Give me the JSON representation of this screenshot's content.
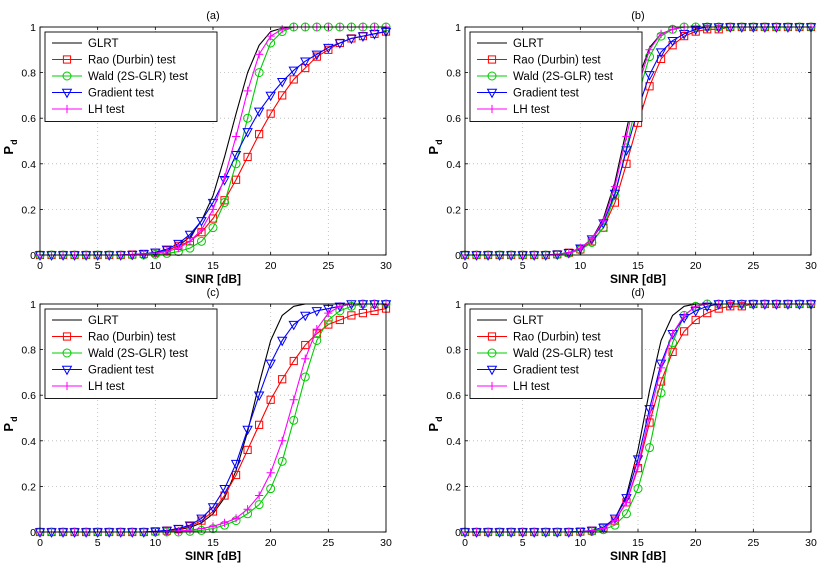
{
  "chart_data": [
    {
      "type": "line",
      "title": "(a)",
      "xlabel": "SINR [dB]",
      "ylabel": "P",
      "ylabel_subscript": "d",
      "xlim": [
        0,
        30
      ],
      "ylim": [
        0,
        1
      ],
      "x_ticks": [
        0,
        5,
        10,
        15,
        20,
        25,
        30
      ],
      "y_ticks": [
        0,
        0.2,
        0.4,
        0.6,
        0.8,
        1
      ],
      "y_tick_labels": [
        "0",
        "0.2",
        "0.4",
        "0.6",
        "0.8",
        "1"
      ],
      "grid": true,
      "legend_position": "top-left",
      "x": [
        0,
        1,
        2,
        3,
        4,
        5,
        6,
        7,
        8,
        9,
        10,
        11,
        12,
        13,
        14,
        15,
        16,
        17,
        18,
        19,
        20,
        21,
        22,
        23,
        24,
        25,
        26,
        27,
        28,
        29,
        30
      ],
      "series": [
        {
          "name": "GLRT",
          "values": [
            0,
            0,
            0,
            0,
            0,
            0,
            0,
            0,
            0.002,
            0.005,
            0.01,
            0.02,
            0.04,
            0.08,
            0.15,
            0.26,
            0.43,
            0.62,
            0.8,
            0.92,
            0.98,
            0.995,
            1,
            1,
            1,
            1,
            1,
            1,
            1,
            1,
            1
          ]
        },
        {
          "name": "Rao (Durbin) test",
          "values": [
            0,
            0,
            0,
            0,
            0,
            0,
            0,
            0,
            0.002,
            0.005,
            0.01,
            0.02,
            0.04,
            0.06,
            0.1,
            0.16,
            0.24,
            0.33,
            0.43,
            0.53,
            0.62,
            0.7,
            0.77,
            0.82,
            0.87,
            0.9,
            0.93,
            0.95,
            0.96,
            0.97,
            0.98
          ]
        },
        {
          "name": "Wald (2S-GLR) test",
          "values": [
            0,
            0,
            0,
            0,
            0,
            0,
            0,
            0,
            0,
            0,
            0.003,
            0.007,
            0.015,
            0.03,
            0.06,
            0.12,
            0.23,
            0.4,
            0.6,
            0.8,
            0.93,
            0.98,
            1,
            1,
            1,
            1,
            1,
            1,
            1,
            1,
            1
          ]
        },
        {
          "name": "Gradient test",
          "values": [
            0,
            0,
            0,
            0,
            0,
            0,
            0,
            0,
            0.002,
            0.005,
            0.012,
            0.025,
            0.05,
            0.09,
            0.15,
            0.23,
            0.33,
            0.44,
            0.54,
            0.63,
            0.7,
            0.76,
            0.81,
            0.85,
            0.88,
            0.91,
            0.93,
            0.95,
            0.96,
            0.97,
            0.98
          ]
        },
        {
          "name": "LH test",
          "values": [
            0,
            0,
            0,
            0,
            0,
            0,
            0,
            0,
            0.002,
            0.004,
            0.008,
            0.015,
            0.03,
            0.06,
            0.11,
            0.2,
            0.34,
            0.52,
            0.72,
            0.88,
            0.96,
            0.99,
            1,
            1,
            1,
            1,
            1,
            1,
            1,
            1,
            1
          ]
        }
      ]
    },
    {
      "type": "line",
      "title": "(b)",
      "xlabel": "SINR [dB]",
      "ylabel": "P",
      "ylabel_subscript": "d",
      "xlim": [
        0,
        30
      ],
      "ylim": [
        0,
        1
      ],
      "x_ticks": [
        0,
        5,
        10,
        15,
        20,
        25,
        30
      ],
      "y_ticks": [
        0,
        0.2,
        0.4,
        0.6,
        0.8,
        1
      ],
      "y_tick_labels": [
        "0",
        "0.2",
        "0.4",
        "0.6",
        "0.8",
        "1"
      ],
      "grid": true,
      "legend_position": "top-left",
      "x": [
        0,
        1,
        2,
        3,
        4,
        5,
        6,
        7,
        8,
        9,
        10,
        11,
        12,
        13,
        14,
        15,
        16,
        17,
        18,
        19,
        20,
        21,
        22,
        23,
        24,
        25,
        26,
        27,
        28,
        29,
        30
      ],
      "series": [
        {
          "name": "GLRT",
          "values": [
            0,
            0,
            0,
            0,
            0,
            0,
            0,
            0,
            0.003,
            0.01,
            0.03,
            0.07,
            0.16,
            0.32,
            0.55,
            0.77,
            0.91,
            0.97,
            0.99,
            1,
            1,
            1,
            1,
            1,
            1,
            1,
            1,
            1,
            1,
            1,
            1
          ]
        },
        {
          "name": "Rao (Durbin) test",
          "values": [
            0,
            0,
            0,
            0,
            0,
            0,
            0,
            0,
            0.003,
            0.01,
            0.025,
            0.06,
            0.12,
            0.23,
            0.4,
            0.58,
            0.74,
            0.86,
            0.92,
            0.96,
            0.98,
            0.99,
            0.99,
            1,
            1,
            1,
            1,
            1,
            1,
            1,
            1
          ]
        },
        {
          "name": "Wald (2S-GLR) test",
          "values": [
            0,
            0,
            0,
            0,
            0,
            0,
            0,
            0,
            0.002,
            0.008,
            0.022,
            0.055,
            0.12,
            0.26,
            0.47,
            0.7,
            0.87,
            0.96,
            0.99,
            1,
            1,
            1,
            1,
            1,
            1,
            1,
            1,
            1,
            1,
            1,
            1
          ]
        },
        {
          "name": "Gradient test",
          "values": [
            0,
            0,
            0,
            0,
            0,
            0,
            0,
            0,
            0.003,
            0.01,
            0.03,
            0.07,
            0.14,
            0.27,
            0.46,
            0.64,
            0.79,
            0.89,
            0.94,
            0.97,
            0.99,
            1,
            1,
            1,
            1,
            1,
            1,
            1,
            1,
            1,
            1
          ]
        },
        {
          "name": "LH test",
          "values": [
            0,
            0,
            0,
            0,
            0,
            0,
            0,
            0,
            0.003,
            0.01,
            0.03,
            0.07,
            0.15,
            0.3,
            0.52,
            0.74,
            0.9,
            0.97,
            0.99,
            1,
            1,
            1,
            1,
            1,
            1,
            1,
            1,
            1,
            1,
            1,
            1
          ]
        }
      ]
    },
    {
      "type": "line",
      "title": "(c)",
      "xlabel": "SINR [dB]",
      "ylabel": "P",
      "ylabel_subscript": "d",
      "xlim": [
        0,
        30
      ],
      "ylim": [
        0,
        1
      ],
      "x_ticks": [
        0,
        5,
        10,
        15,
        20,
        25,
        30
      ],
      "y_ticks": [
        0,
        0.2,
        0.4,
        0.6,
        0.8,
        1
      ],
      "y_tick_labels": [
        "0",
        "0.2",
        "0.4",
        "0.6",
        "0.8",
        "1"
      ],
      "grid": true,
      "legend_position": "top-left",
      "x": [
        0,
        1,
        2,
        3,
        4,
        5,
        6,
        7,
        8,
        9,
        10,
        11,
        12,
        13,
        14,
        15,
        16,
        17,
        18,
        19,
        20,
        21,
        22,
        23,
        24,
        25,
        26,
        27,
        28,
        29,
        30
      ],
      "series": [
        {
          "name": "GLRT",
          "values": [
            0,
            0,
            0,
            0,
            0,
            0,
            0,
            0,
            0,
            0,
            0.002,
            0.005,
            0.01,
            0.02,
            0.04,
            0.08,
            0.15,
            0.27,
            0.44,
            0.65,
            0.84,
            0.95,
            0.99,
            1,
            1,
            1,
            1,
            1,
            1,
            1,
            1
          ]
        },
        {
          "name": "Rao (Durbin) test",
          "values": [
            0,
            0,
            0,
            0,
            0,
            0,
            0,
            0,
            0,
            0,
            0.003,
            0.006,
            0.012,
            0.025,
            0.05,
            0.09,
            0.16,
            0.25,
            0.36,
            0.47,
            0.58,
            0.67,
            0.75,
            0.82,
            0.87,
            0.91,
            0.93,
            0.95,
            0.96,
            0.97,
            0.98
          ]
        },
        {
          "name": "Wald (2S-GLR) test",
          "values": [
            0,
            0,
            0,
            0,
            0,
            0,
            0,
            0,
            0,
            0,
            0,
            0,
            0,
            0.003,
            0.007,
            0.015,
            0.03,
            0.05,
            0.08,
            0.12,
            0.19,
            0.31,
            0.49,
            0.68,
            0.84,
            0.93,
            0.97,
            0.99,
            1,
            1,
            1
          ]
        },
        {
          "name": "Gradient test",
          "values": [
            0,
            0,
            0,
            0,
            0,
            0,
            0,
            0,
            0,
            0,
            0.003,
            0.007,
            0.015,
            0.03,
            0.06,
            0.11,
            0.19,
            0.3,
            0.45,
            0.6,
            0.74,
            0.84,
            0.91,
            0.95,
            0.97,
            0.98,
            0.99,
            1,
            1,
            1,
            1
          ]
        },
        {
          "name": "LH test",
          "values": [
            0,
            0,
            0,
            0,
            0,
            0,
            0,
            0,
            0,
            0,
            0,
            0.002,
            0.004,
            0.008,
            0.015,
            0.025,
            0.04,
            0.06,
            0.1,
            0.16,
            0.26,
            0.4,
            0.58,
            0.76,
            0.89,
            0.96,
            0.99,
            1,
            1,
            1,
            1
          ]
        }
      ]
    },
    {
      "type": "line",
      "title": "(d)",
      "xlabel": "SINR [dB]",
      "ylabel": "P",
      "ylabel_subscript": "d",
      "xlim": [
        0,
        30
      ],
      "ylim": [
        0,
        1
      ],
      "x_ticks": [
        0,
        5,
        10,
        15,
        20,
        25,
        30
      ],
      "y_ticks": [
        0,
        0.2,
        0.4,
        0.6,
        0.8,
        1
      ],
      "y_tick_labels": [
        "0",
        "0.2",
        "0.4",
        "0.6",
        "0.8",
        "1"
      ],
      "grid": true,
      "legend_position": "top-left",
      "x": [
        0,
        1,
        2,
        3,
        4,
        5,
        6,
        7,
        8,
        9,
        10,
        11,
        12,
        13,
        14,
        15,
        16,
        17,
        18,
        19,
        20,
        21,
        22,
        23,
        24,
        25,
        26,
        27,
        28,
        29,
        30
      ],
      "series": [
        {
          "name": "GLRT",
          "values": [
            0,
            0,
            0,
            0,
            0,
            0,
            0,
            0,
            0,
            0,
            0.002,
            0.006,
            0.02,
            0.06,
            0.16,
            0.36,
            0.62,
            0.84,
            0.95,
            0.99,
            1,
            1,
            1,
            1,
            1,
            1,
            1,
            1,
            1,
            1,
            1
          ]
        },
        {
          "name": "Rao (Durbin) test",
          "values": [
            0,
            0,
            0,
            0,
            0,
            0,
            0,
            0,
            0,
            0,
            0.002,
            0.006,
            0.02,
            0.05,
            0.13,
            0.28,
            0.48,
            0.66,
            0.79,
            0.88,
            0.93,
            0.96,
            0.98,
            0.99,
            0.99,
            1,
            1,
            1,
            1,
            1,
            1
          ]
        },
        {
          "name": "Wald (2S-GLR) test",
          "values": [
            0,
            0,
            0,
            0,
            0,
            0,
            0,
            0,
            0,
            0,
            0,
            0.003,
            0.01,
            0.03,
            0.08,
            0.19,
            0.37,
            0.61,
            0.83,
            0.95,
            0.99,
            1,
            1,
            1,
            1,
            1,
            1,
            1,
            1,
            1,
            1
          ]
        },
        {
          "name": "Gradient test",
          "values": [
            0,
            0,
            0,
            0,
            0,
            0,
            0,
            0,
            0,
            0,
            0.002,
            0.007,
            0.02,
            0.06,
            0.15,
            0.32,
            0.54,
            0.74,
            0.87,
            0.94,
            0.97,
            0.99,
            1,
            1,
            1,
            1,
            1,
            1,
            1,
            1,
            1
          ]
        },
        {
          "name": "LH test",
          "values": [
            0,
            0,
            0,
            0,
            0,
            0,
            0,
            0,
            0,
            0,
            0.002,
            0.005,
            0.016,
            0.05,
            0.13,
            0.29,
            0.51,
            0.72,
            0.87,
            0.95,
            0.99,
            1,
            1,
            1,
            1,
            1,
            1,
            1,
            1,
            1,
            1
          ]
        }
      ]
    }
  ],
  "styles": [
    {
      "color": "#000000",
      "marker": "none"
    },
    {
      "color": "#ff0000",
      "marker": "square"
    },
    {
      "color": "#00cc00",
      "marker": "circle"
    },
    {
      "color": "#0000ff",
      "marker": "triangle-down"
    },
    {
      "color": "#ff00ff",
      "marker": "plus"
    }
  ]
}
